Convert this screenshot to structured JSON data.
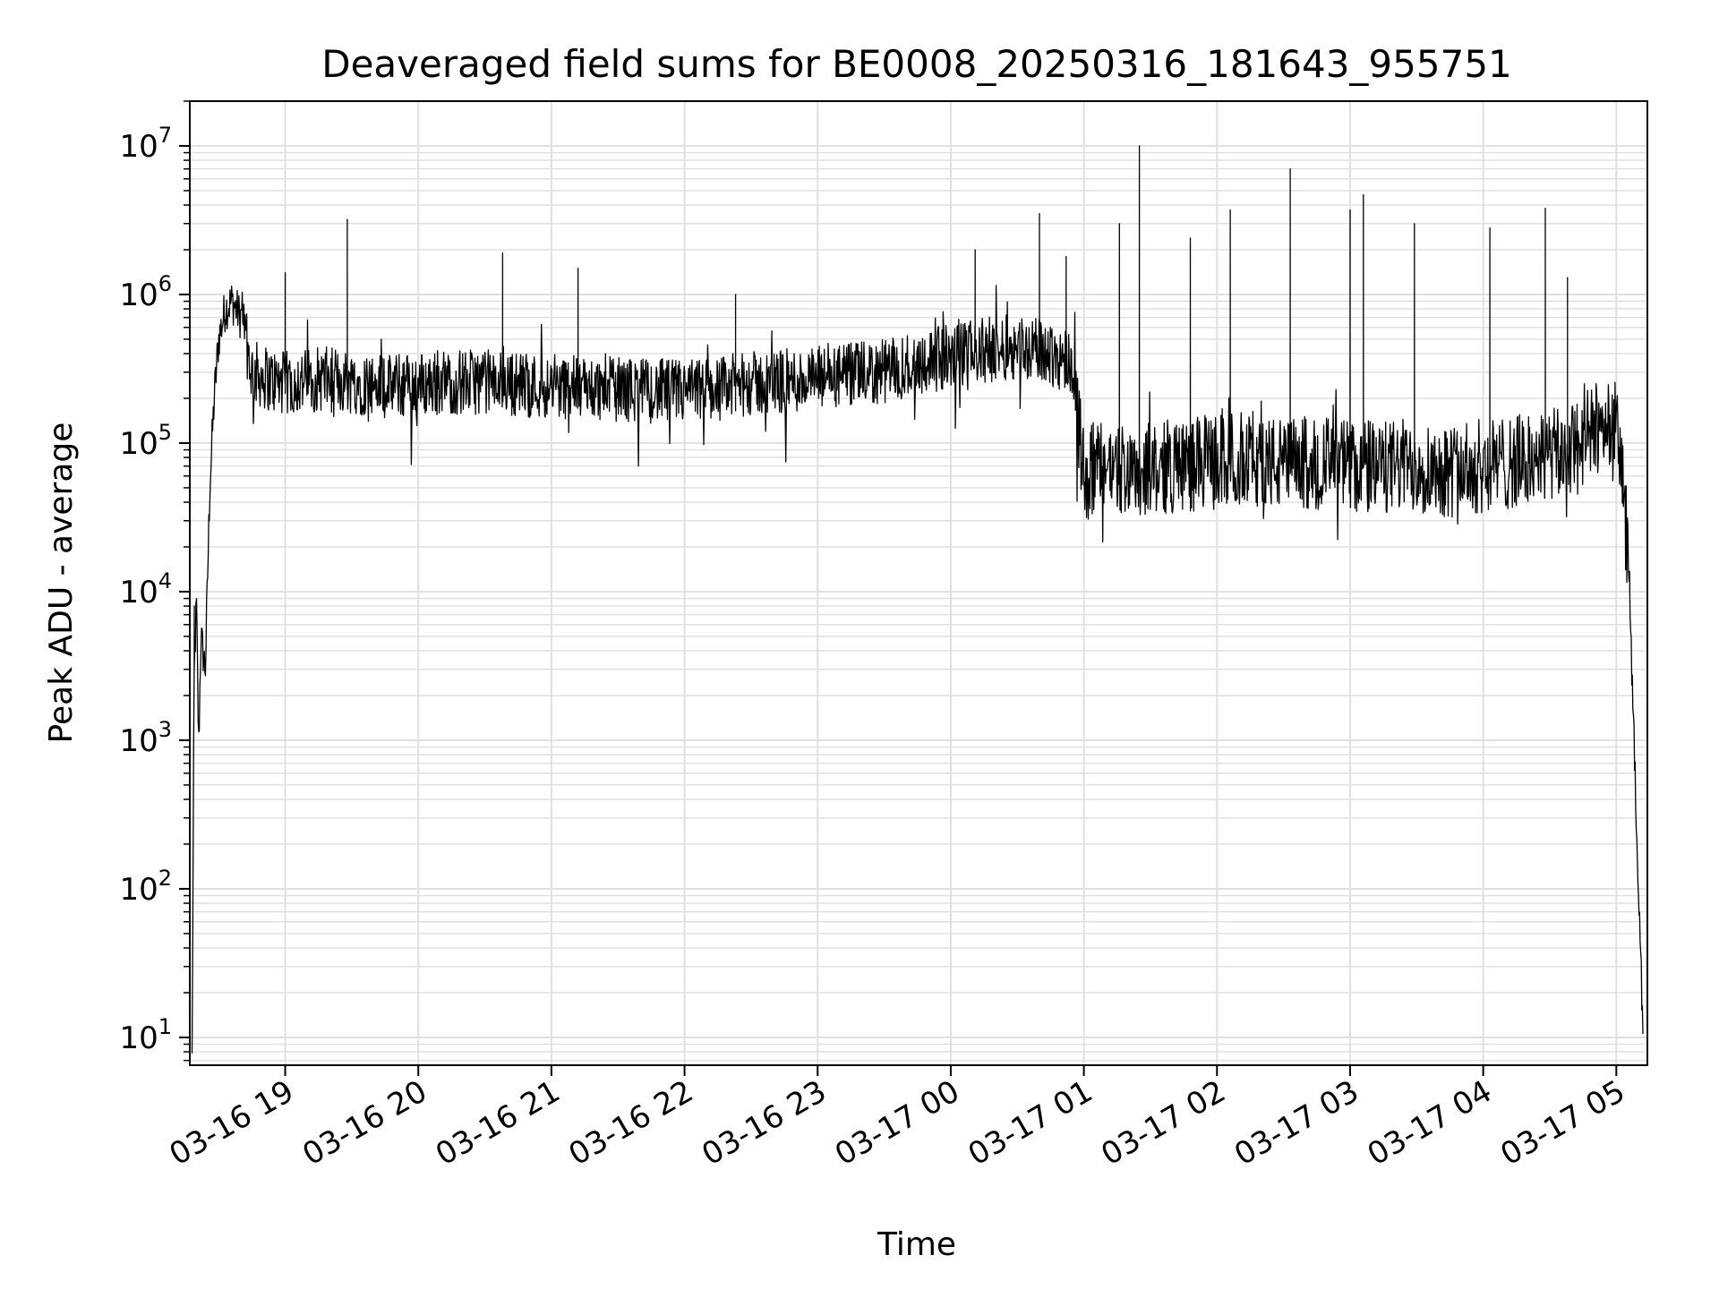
{
  "chart_data": {
    "type": "line",
    "title": "Deaveraged field sums for BE0008_20250316_181643_955751",
    "xlabel": "Time",
    "ylabel": "Peak ADU - average",
    "yscale": "log",
    "ylim": [
      6.5,
      20000000
    ],
    "xlim": [
      "2025-03-16 18:17",
      "2025-03-17 05:14"
    ],
    "x_ticks": [
      {
        "value": "2025-03-16 19:00",
        "label": "03-16 19"
      },
      {
        "value": "2025-03-16 20:00",
        "label": "03-16 20"
      },
      {
        "value": "2025-03-16 21:00",
        "label": "03-16 21"
      },
      {
        "value": "2025-03-16 22:00",
        "label": "03-16 22"
      },
      {
        "value": "2025-03-16 23:00",
        "label": "03-16 23"
      },
      {
        "value": "2025-03-17 00:00",
        "label": "03-17 00"
      },
      {
        "value": "2025-03-17 01:00",
        "label": "03-17 01"
      },
      {
        "value": "2025-03-17 02:00",
        "label": "03-17 02"
      },
      {
        "value": "2025-03-17 03:00",
        "label": "03-17 03"
      },
      {
        "value": "2025-03-17 04:00",
        "label": "03-17 04"
      },
      {
        "value": "2025-03-17 05:00",
        "label": "03-17 05"
      }
    ],
    "y_ticks": [
      {
        "value": 10,
        "base": "10",
        "exp": "1"
      },
      {
        "value": 100,
        "base": "10",
        "exp": "2"
      },
      {
        "value": 1000,
        "base": "10",
        "exp": "3"
      },
      {
        "value": 10000,
        "base": "10",
        "exp": "4"
      },
      {
        "value": 100000,
        "base": "10",
        "exp": "5"
      },
      {
        "value": 1000000,
        "base": "10",
        "exp": "6"
      },
      {
        "value": 10000000,
        "base": "10",
        "exp": "7"
      }
    ],
    "grid": true,
    "line_color": "#000000",
    "grid_color": "#e0e0e0",
    "series": [
      {
        "x": [
          "2025-03-16 18:18",
          "2025-03-16 18:19",
          "2025-03-16 18:20",
          "2025-03-16 18:21",
          "2025-03-16 18:22",
          "2025-03-16 18:24",
          "2025-03-16 18:26",
          "2025-03-16 18:28",
          "2025-03-16 18:30",
          "2025-03-16 18:33",
          "2025-03-16 18:36",
          "2025-03-16 18:40",
          "2025-03-16 18:45",
          "2025-03-16 18:50",
          "2025-03-16 18:55",
          "2025-03-16 19:00",
          "2025-03-16 19:15",
          "2025-03-16 19:28",
          "2025-03-16 19:45",
          "2025-03-16 20:00",
          "2025-03-16 20:30",
          "2025-03-16 21:00",
          "2025-03-16 21:30",
          "2025-03-16 22:00",
          "2025-03-16 22:30",
          "2025-03-16 23:00",
          "2025-03-16 23:30",
          "2025-03-16 23:45",
          "2025-03-17 00:00",
          "2025-03-17 00:15",
          "2025-03-17 00:30",
          "2025-03-17 00:45",
          "2025-03-17 00:55",
          "2025-03-17 01:00",
          "2025-03-17 01:10",
          "2025-03-17 01:25",
          "2025-03-17 01:40",
          "2025-03-17 02:00",
          "2025-03-17 02:15",
          "2025-03-17 02:30",
          "2025-03-17 02:45",
          "2025-03-17 03:00",
          "2025-03-17 03:15",
          "2025-03-17 03:30",
          "2025-03-17 03:45",
          "2025-03-17 04:00",
          "2025-03-17 04:15",
          "2025-03-17 04:30",
          "2025-03-17 04:40",
          "2025-03-17 04:50",
          "2025-03-17 04:57",
          "2025-03-17 05:00",
          "2025-03-17 05:03",
          "2025-03-17 05:06",
          "2025-03-17 05:08",
          "2025-03-17 05:10",
          "2025-03-17 05:12"
        ],
        "y": [
          7,
          3000,
          8000,
          900,
          5000,
          3000,
          50000,
          200000,
          500000,
          800000,
          900000,
          700000,
          300000,
          280000,
          260000,
          250000,
          270000,
          260000,
          240000,
          250000,
          260000,
          240000,
          230000,
          220000,
          250000,
          270000,
          300000,
          350000,
          380000,
          420000,
          450000,
          400000,
          350000,
          60000,
          70000,
          65000,
          70000,
          75000,
          80000,
          70000,
          75000,
          70000,
          68000,
          72000,
          65000,
          70000,
          75000,
          80000,
          90000,
          120000,
          150000,
          120000,
          60000,
          10000,
          1000,
          100,
          10
        ],
        "spikes": [
          {
            "x": "2025-03-16 18:19",
            "y": 8000
          },
          {
            "x": "2025-03-16 19:00",
            "y": 1400000
          },
          {
            "x": "2025-03-16 19:28",
            "y": 3200000
          },
          {
            "x": "2025-03-16 20:38",
            "y": 1900000
          },
          {
            "x": "2025-03-16 21:12",
            "y": 1500000
          },
          {
            "x": "2025-03-16 22:23",
            "y": 1000000
          },
          {
            "x": "2025-03-17 00:11",
            "y": 2000000
          },
          {
            "x": "2025-03-17 00:40",
            "y": 3500000
          },
          {
            "x": "2025-03-17 00:52",
            "y": 1800000
          },
          {
            "x": "2025-03-17 01:16",
            "y": 3000000
          },
          {
            "x": "2025-03-17 01:25",
            "y": 10000000
          },
          {
            "x": "2025-03-17 01:48",
            "y": 2400000
          },
          {
            "x": "2025-03-17 02:06",
            "y": 3700000
          },
          {
            "x": "2025-03-17 02:33",
            "y": 7000000
          },
          {
            "x": "2025-03-17 03:00",
            "y": 3700000
          },
          {
            "x": "2025-03-17 03:06",
            "y": 4700000
          },
          {
            "x": "2025-03-17 03:29",
            "y": 3000000
          },
          {
            "x": "2025-03-17 04:03",
            "y": 2800000
          },
          {
            "x": "2025-03-17 04:28",
            "y": 3800000
          },
          {
            "x": "2025-03-17 04:38",
            "y": 1300000
          }
        ]
      }
    ]
  }
}
